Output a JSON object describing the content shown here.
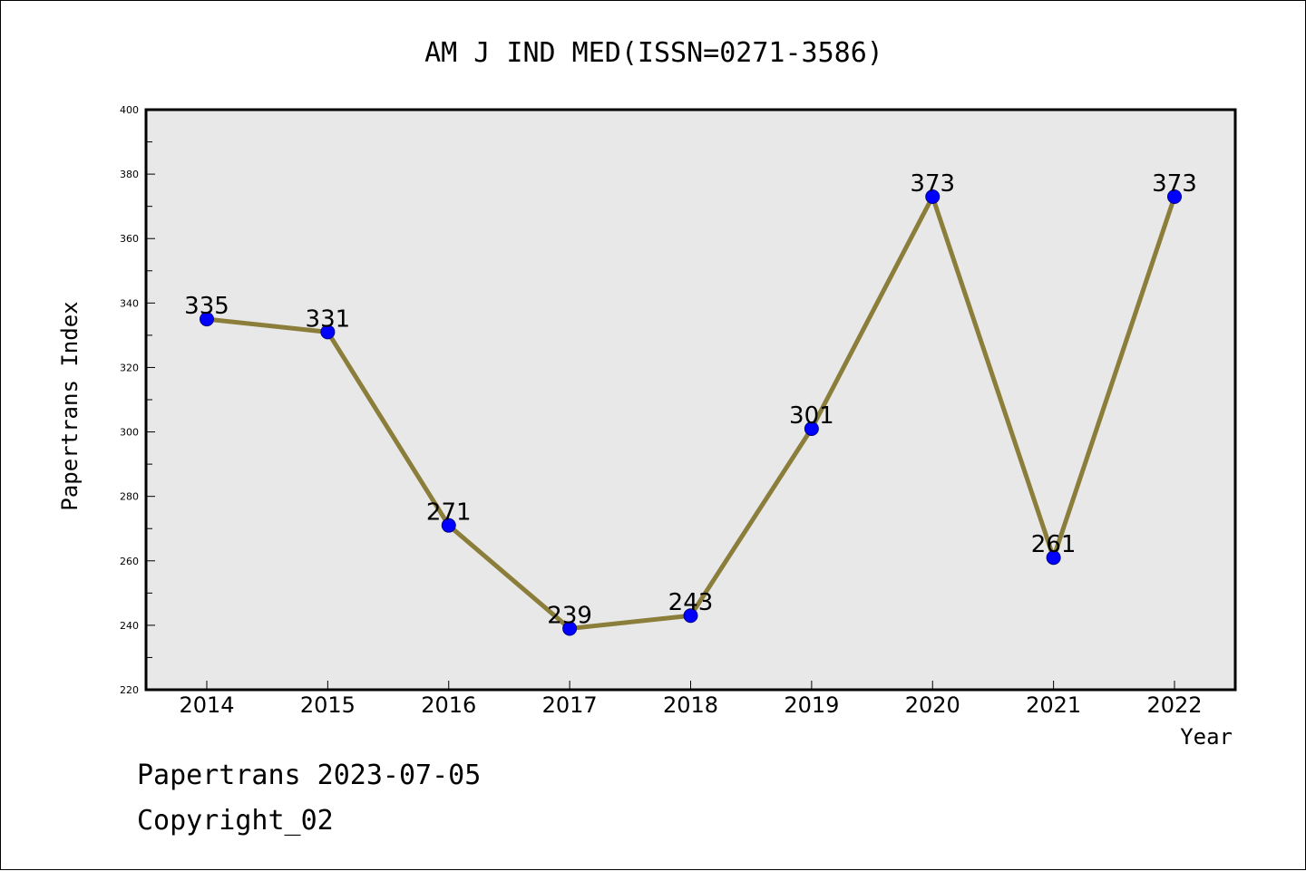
{
  "chart_data": {
    "type": "line",
    "title": "AM J IND MED(ISSN=0271-3586)",
    "xlabel": "Year",
    "ylabel": "Papertrans Index",
    "x": [
      "2014",
      "2015",
      "2016",
      "2017",
      "2018",
      "2019",
      "2020",
      "2021",
      "2022"
    ],
    "values": [
      335,
      331,
      271,
      239,
      243,
      301,
      373,
      261,
      373
    ],
    "data_labels": [
      "335",
      "331",
      "271",
      "239",
      "243",
      "301",
      "373",
      "261",
      "373"
    ],
    "ylim": [
      220,
      400
    ],
    "yticks": [
      220,
      240,
      260,
      280,
      300,
      320,
      340,
      360,
      380,
      400
    ],
    "ytick_labels": [
      "220",
      "240",
      "260",
      "280",
      "300",
      "320",
      "340",
      "360",
      "380",
      "400"
    ],
    "grid": false,
    "legend": "none",
    "line_color": "#8b7d3a",
    "marker_color": "#0000ff",
    "plot_background": "#e8e8e8"
  },
  "footer": {
    "line1": "Papertrans 2023-07-05",
    "line2": "Copyright_02"
  }
}
